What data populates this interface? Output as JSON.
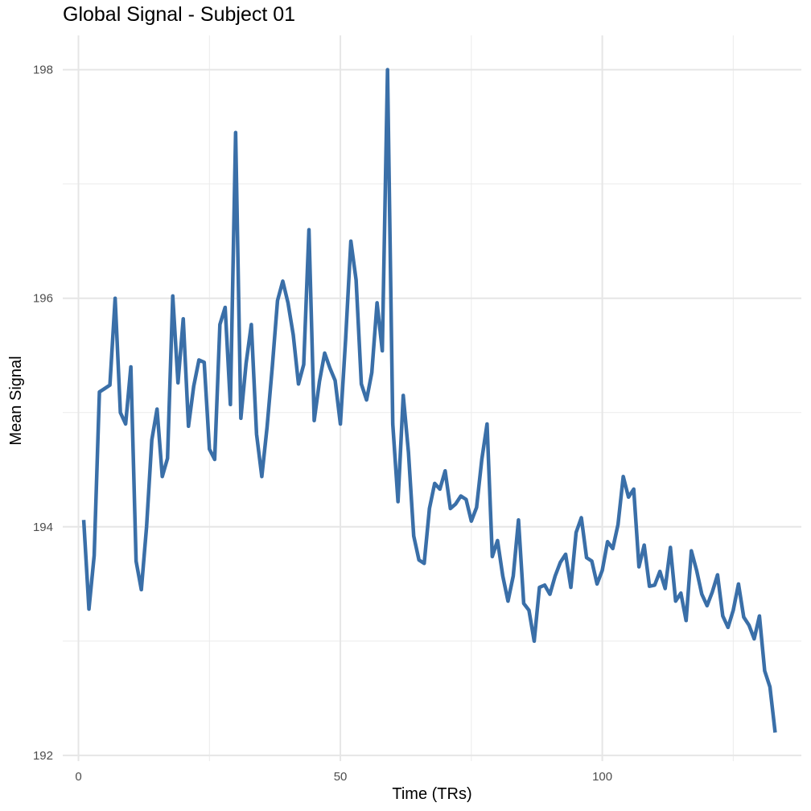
{
  "chart_data": {
    "type": "line",
    "title": "Global Signal - Subject 01",
    "xlabel": "Time (TRs)",
    "ylabel": "Mean Signal",
    "xlim": [
      -3,
      138
    ],
    "ylim": [
      191.95,
      198.3
    ],
    "x_ticks": [
      0,
      50,
      100
    ],
    "x_minor": [
      25,
      75,
      125
    ],
    "y_ticks": [
      192,
      194,
      196,
      198
    ],
    "y_minor": [
      193,
      195,
      197
    ],
    "grid": true,
    "line_color": "#3A6FA8",
    "series": [
      {
        "x": [
          1,
          2,
          3,
          4,
          5,
          6,
          7,
          8,
          9,
          10,
          11,
          12,
          13,
          14,
          15,
          16,
          17,
          18,
          19,
          20,
          21,
          22,
          23,
          24,
          25,
          26,
          27,
          28,
          29,
          30,
          31,
          32,
          33,
          34,
          35,
          36,
          37,
          38,
          39,
          40,
          41,
          42,
          43,
          44,
          45,
          46,
          47,
          48,
          49,
          50,
          51,
          52,
          53,
          54,
          55,
          56,
          57,
          58,
          59,
          60,
          61,
          62,
          63,
          64,
          65,
          66,
          67,
          68,
          69,
          70,
          71,
          72,
          73,
          74,
          75,
          76,
          77,
          78,
          79,
          80,
          81,
          82,
          83,
          84,
          85,
          86,
          87,
          88,
          89,
          90,
          91,
          92,
          93,
          94,
          95,
          96,
          97,
          98,
          99,
          100,
          101,
          102,
          103,
          104,
          105,
          106,
          107,
          108,
          109,
          110,
          111,
          112,
          113,
          114,
          115,
          116,
          117,
          118,
          119,
          120,
          121,
          122,
          123,
          124,
          125,
          126,
          127,
          128,
          129,
          130,
          131,
          132,
          133
        ],
        "y": [
          194.06,
          193.28,
          193.75,
          195.18,
          195.21,
          195.24,
          196.0,
          195.0,
          194.9,
          195.4,
          193.7,
          193.45,
          194.0,
          194.76,
          195.03,
          194.44,
          194.6,
          196.02,
          195.26,
          195.82,
          194.88,
          195.23,
          195.46,
          195.44,
          194.68,
          194.59,
          195.77,
          195.92,
          195.07,
          197.45,
          194.95,
          195.43,
          195.77,
          194.81,
          194.44,
          194.87,
          195.4,
          195.98,
          196.15,
          195.96,
          195.68,
          195.25,
          195.42,
          196.6,
          194.93,
          195.27,
          195.52,
          195.39,
          195.28,
          194.9,
          195.64,
          196.5,
          196.16,
          195.25,
          195.11,
          195.35,
          195.96,
          195.54,
          198.0,
          194.9,
          194.22,
          195.15,
          194.65,
          193.92,
          193.71,
          193.68,
          194.16,
          194.38,
          194.33,
          194.49,
          194.16,
          194.2,
          194.27,
          194.24,
          194.05,
          194.17,
          194.59,
          194.9,
          193.74,
          193.88,
          193.57,
          193.35,
          193.57,
          194.06,
          193.33,
          193.27,
          193.0,
          193.47,
          193.49,
          193.41,
          193.57,
          193.69,
          193.76,
          193.47,
          193.95,
          194.08,
          193.73,
          193.7,
          193.5,
          193.62,
          193.87,
          193.81,
          194.02,
          194.44,
          194.26,
          194.33,
          193.65,
          193.84,
          193.48,
          193.49,
          193.61,
          193.46,
          193.82,
          193.35,
          193.42,
          193.18,
          193.79,
          193.62,
          193.41,
          193.31,
          193.43,
          193.58,
          193.22,
          193.12,
          193.27,
          193.5,
          193.21,
          193.14,
          193.02,
          193.22,
          192.74,
          192.6,
          192.2
        ]
      }
    ]
  }
}
